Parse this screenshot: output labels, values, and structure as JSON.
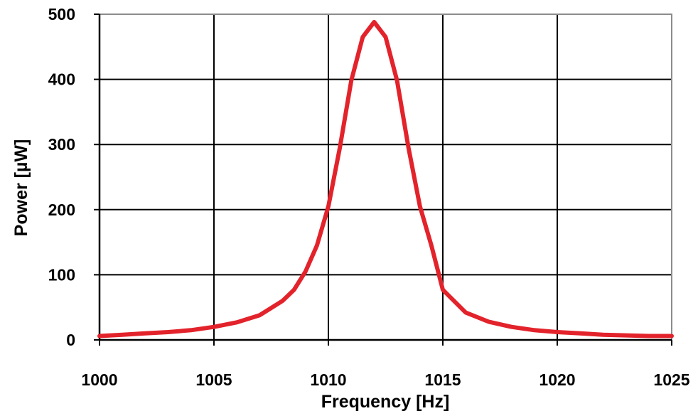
{
  "chart_data": {
    "type": "line",
    "title": "",
    "xlabel": "Frequency [Hz]",
    "ylabel": "Power [µW]",
    "xlim": [
      1000,
      1025
    ],
    "ylim": [
      0,
      500
    ],
    "x_ticks": [
      "1000",
      "1005",
      "1010",
      "1015",
      "1020",
      "1025"
    ],
    "y_ticks": [
      "0",
      "100",
      "200",
      "300",
      "400",
      "500"
    ],
    "grid": true,
    "legend": "none",
    "series": [
      {
        "color": "#e3232b",
        "x": [
          1000,
          1001,
          1002,
          1003,
          1004,
          1005,
          1006,
          1007,
          1008,
          1008.5,
          1009,
          1009.5,
          1010,
          1010.5,
          1011,
          1011.5,
          1012,
          1012.5,
          1013,
          1013.5,
          1014,
          1014.5,
          1015,
          1016,
          1017,
          1018,
          1019,
          1020,
          1021,
          1022,
          1023,
          1024,
          1025
        ],
        "y": [
          6,
          8,
          10,
          12,
          15,
          20,
          27,
          38,
          60,
          77,
          105,
          145,
          205,
          295,
          398,
          465,
          488,
          465,
          398,
          295,
          205,
          145,
          77,
          42,
          28,
          20,
          15,
          12,
          10,
          8,
          7,
          6,
          6
        ]
      }
    ]
  }
}
